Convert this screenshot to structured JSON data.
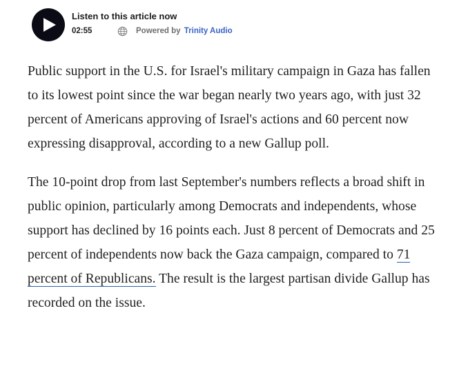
{
  "player": {
    "title": "Listen to this article now",
    "duration": "02:55",
    "powered_by_label": "Powered by",
    "brand": "Trinity Audio",
    "icons": {
      "play": "play-icon",
      "globe": "globe-icon"
    },
    "colors": {
      "play_button_bg": "#0b0b16",
      "brand": "#3b63c4"
    }
  },
  "article": {
    "paragraph1": "Public support in the U.S. for Israel's military campaign in Gaza has fallen to its lowest point since the war began nearly two years ago, with just 32 percent of Americans approving of Israel's actions and 60 percent now expressing disapproval, according to a new Gallup poll.",
    "paragraph2_before_link": "The 10-point drop from last September's numbers reflects a broad shift in public opinion, particularly among Democrats and independents, whose support has declined by 16 points each. Just 8 percent of Democrats and 25 percent of independents now back the Gaza campaign, compared to ",
    "paragraph2_link": "71 percent of Republicans.",
    "paragraph2_after_link": " The result is the largest partisan divide Gallup has recorded on the issue."
  }
}
